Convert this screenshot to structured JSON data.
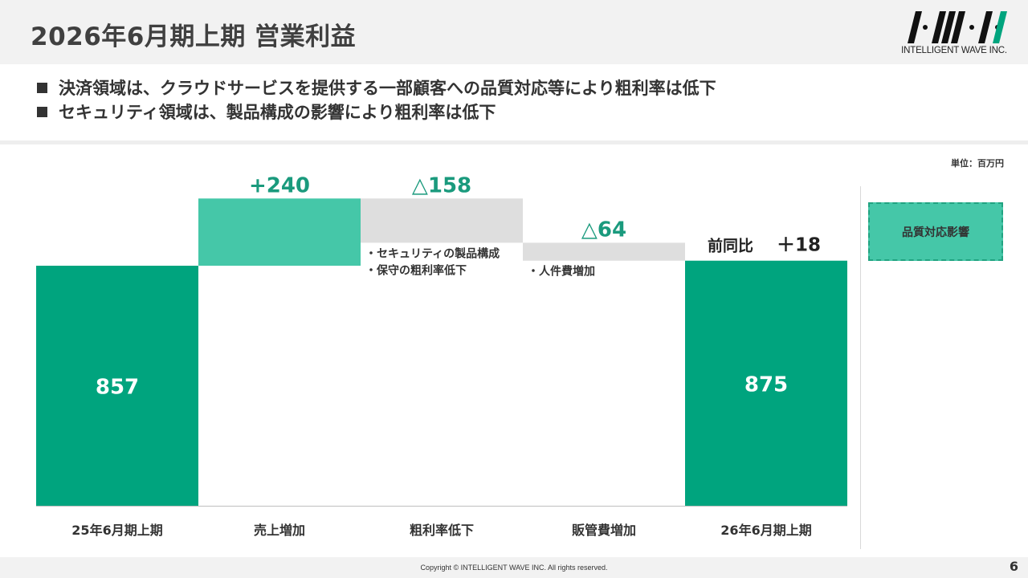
{
  "header": {
    "title": "2026年6月期上期 営業利益",
    "logo_text": "INTELLIGENT WAVE INC."
  },
  "bullets": [
    "決済領域は、クラウドサービスを提供する一部顧客への品質対応等により粗利率は低下",
    "セキュリティ領域は、製品構成の影響により粗利率は低下"
  ],
  "unit_label": "単位：百万円",
  "legend": {
    "label": "品質対応影響"
  },
  "yoy": {
    "label": "前同比",
    "value": "＋18"
  },
  "chart_data": {
    "type": "waterfall",
    "categories": [
      "25年6月期上期",
      "売上増加",
      "粗利率低下",
      "販管費増加",
      "26年6月期上期"
    ],
    "values": [
      857,
      240,
      -158,
      -64,
      875
    ],
    "value_labels": [
      "857",
      "+240",
      "△158",
      "△64",
      "875"
    ],
    "kinds": [
      "total",
      "increase",
      "decrease",
      "decrease",
      "total"
    ],
    "notes": [
      [],
      [],
      [
        "・セキュリティの製品構成",
        "・保守の粗利率低下"
      ],
      [
        "・人件費増加"
      ],
      []
    ],
    "colors": {
      "total": "#00a47e",
      "increase": "#45c7a8",
      "decrease": "#dedede",
      "label": "#1a9a7d"
    },
    "ylim": [
      0,
      1100
    ]
  },
  "footer": {
    "copyright": "Copyright © INTELLIGENT WAVE INC. All rights reserved.",
    "page": "6"
  }
}
